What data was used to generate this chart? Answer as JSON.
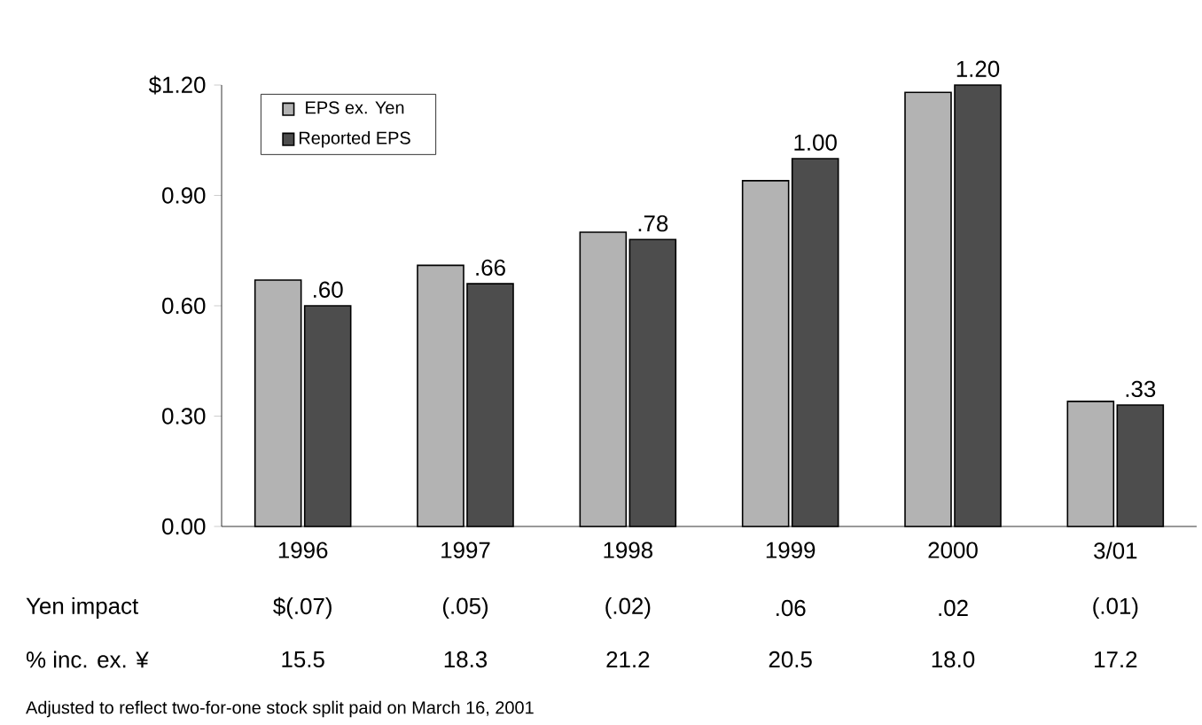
{
  "chart_data": {
    "type": "bar",
    "categories": [
      "1996",
      "1997",
      "1998",
      "1999",
      "2000",
      "3/01"
    ],
    "series": [
      {
        "name": "EPS ex. Yen",
        "color": "#b3b3b3",
        "values": [
          0.67,
          0.71,
          0.8,
          0.94,
          1.18,
          0.34
        ]
      },
      {
        "name": "Reported EPS",
        "color": "#4d4d4d",
        "values": [
          0.6,
          0.66,
          0.78,
          1.0,
          1.2,
          0.33
        ],
        "value_labels": [
          ".60",
          ".66",
          ".78",
          "1.00",
          "1.20",
          ".33"
        ]
      }
    ],
    "ylim": [
      0,
      1.2
    ],
    "yticks": [
      {
        "value": 0,
        "label": "0.00"
      },
      {
        "value": 0.3,
        "label": "0.30"
      },
      {
        "value": 0.6,
        "label": "0.60"
      },
      {
        "value": 0.9,
        "label": "0.90"
      },
      {
        "value": 1.2,
        "label": "$1.20"
      }
    ],
    "legend": "top left",
    "grid": false,
    "annotations": [
      "Yen impact",
      "$(.07)",
      "(.05)",
      "(.02)",
      ".06",
      ".02",
      "(.01)",
      "% inc. ex. ¥",
      "15.5",
      "18.3",
      "21.2",
      "20.5",
      "18.0",
      "17.2",
      "Adjusted to reflect two-for-one stock split paid on March 16, 2001"
    ]
  }
}
